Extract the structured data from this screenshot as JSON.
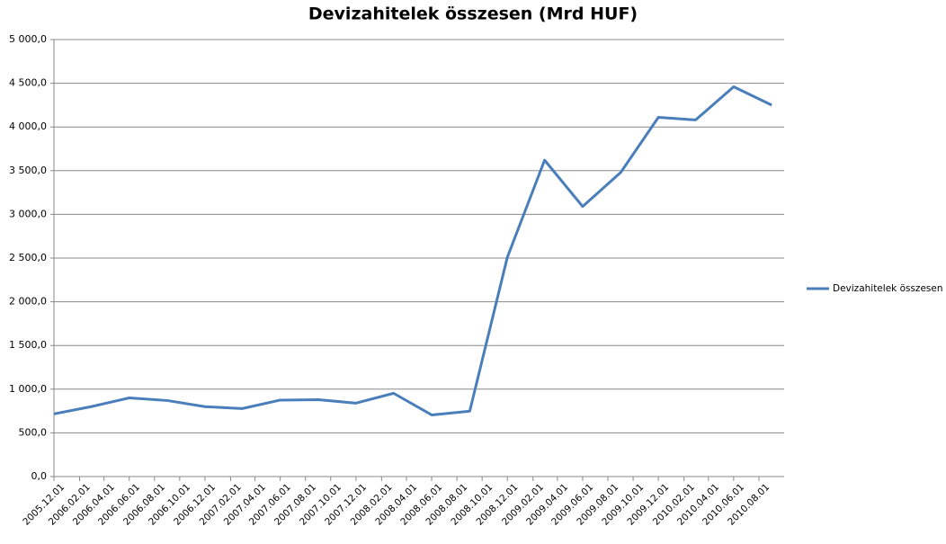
{
  "chart_data": {
    "type": "line",
    "title": "Devizahitelek összesen (Mrd HUF)",
    "x": [
      "2005.12.01",
      "2006.03.01",
      "2006.06.01",
      "2006.09.01",
      "2006.12.01",
      "2007.03.01",
      "2007.06.01",
      "2007.09.01",
      "2007.12.01",
      "2008.03.01",
      "2008.06.01",
      "2008.09.01",
      "2008.12.01",
      "2009.03.01",
      "2009.06.01",
      "2009.09.01",
      "2009.12.01",
      "2010.03.01",
      "2010.06.01",
      "2010.09.01"
    ],
    "series": [
      {
        "name": "Devizahitelek összesen",
        "color": "#4a7ebb",
        "values": [
          717,
          800,
          900,
          870,
          800,
          778,
          875,
          880,
          840,
          953,
          705,
          748,
          2510,
          3620,
          3090,
          3480,
          4110,
          4080,
          4460,
          4250
        ]
      }
    ],
    "xlim": [
      "2005.12.01",
      "2010.10.01"
    ],
    "xticks": [
      "2005.12.01",
      "2006.02.01",
      "2006.04.01",
      "2006.06.01",
      "2006.08.01",
      "2006.10.01",
      "2006.12.01",
      "2007.02.01",
      "2007.04.01",
      "2007.06.01",
      "2007.08.01",
      "2007.10.01",
      "2007.12.01",
      "2008.02.01",
      "2008.04.01",
      "2008.06.01",
      "2008.08.01",
      "2008.10.01",
      "2008.12.01",
      "2009.02.01",
      "2009.04.01",
      "2009.06.01",
      "2009.08.01",
      "2009.10.01",
      "2009.12.01",
      "2010.02.01",
      "2010.04.01",
      "2010.06.01",
      "2010.08.01"
    ],
    "ylim": [
      0,
      5000
    ],
    "yticks": [
      {
        "value": 0,
        "label": "0,0"
      },
      {
        "value": 500,
        "label": "500,0"
      },
      {
        "value": 1000,
        "label": "1 000,0"
      },
      {
        "value": 1500,
        "label": "1 500,0"
      },
      {
        "value": 2000,
        "label": "2 000,0"
      },
      {
        "value": 2500,
        "label": "2 500,0"
      },
      {
        "value": 3000,
        "label": "3 000,0"
      },
      {
        "value": 3500,
        "label": "3 500,0"
      },
      {
        "value": 4000,
        "label": "4 000,0"
      },
      {
        "value": 4500,
        "label": "4 500,0"
      },
      {
        "value": 5000,
        "label": "5 000,0"
      }
    ],
    "grid": true,
    "legend": "right"
  }
}
